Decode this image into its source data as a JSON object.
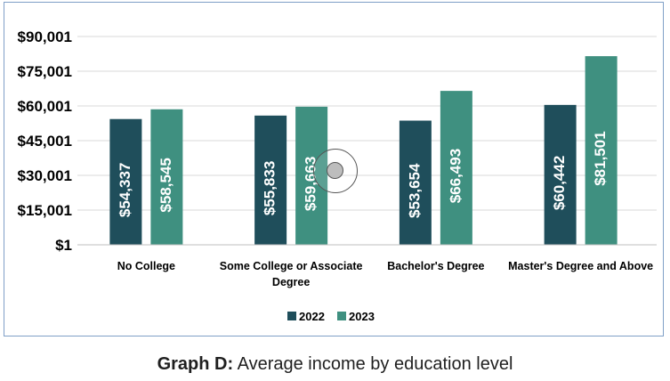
{
  "caption": {
    "bold": "Graph D:",
    "text": " Average income by education level"
  },
  "colors": {
    "series_2022": "#1f4e5b",
    "series_2023": "#3f9080",
    "grid": "#d9d9d9",
    "axis_text": "#000000"
  },
  "chart_data": {
    "type": "bar",
    "categories": [
      "No College",
      "Some College or Associate Degree",
      "Bachelor's Degree",
      "Master's Degree and Above"
    ],
    "series": [
      {
        "name": "2022",
        "values": [
          54337,
          55833,
          53654,
          60442
        ],
        "labels": [
          "$54,337",
          "$55,833",
          "$53,654",
          "$60,442"
        ]
      },
      {
        "name": "2023",
        "values": [
          58545,
          59663,
          66493,
          81501
        ],
        "labels": [
          "$58,545",
          "$59,663",
          "$66,493",
          "$81,501"
        ]
      }
    ],
    "yticks": [
      1,
      15001,
      30001,
      45001,
      60001,
      75001,
      90001
    ],
    "ytick_labels": [
      "$1",
      "$15,001",
      "$30,001",
      "$45,001",
      "$60,001",
      "$75,001",
      "$90,001"
    ],
    "ylim": [
      1,
      90001
    ],
    "grid": true,
    "legend": "bottom-center",
    "title": "",
    "xlabel": "",
    "ylabel": ""
  },
  "cursor": {
    "icon": "cursor-highlight-icon"
  }
}
